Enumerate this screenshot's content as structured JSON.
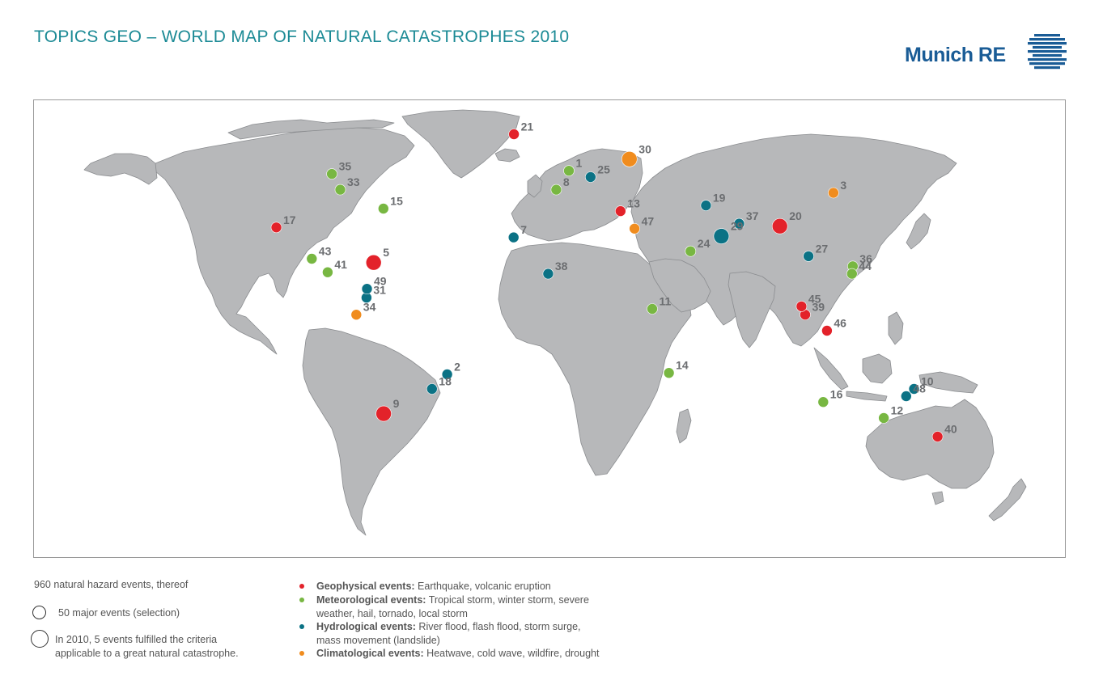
{
  "title": {
    "part1": "TOPICS GEO",
    "separator": " – ",
    "part2": "WORLD MAP OF NATURAL CATASTROPHES 2010"
  },
  "logo": {
    "text": "Munich RE",
    "mark_icon": "munich-re-stripes-icon",
    "color": "#1a5c96"
  },
  "colors": {
    "land": "#b7b8ba",
    "border": "#6b6d70",
    "geophysical": "#e3222a",
    "meteorological": "#78b742",
    "hydrological": "#0b7285",
    "climatological": "#f08c1e",
    "labels": "#6b6d70"
  },
  "legend": {
    "total": "960 natural hazard events, thereof",
    "major": "50 major events (selection)",
    "great_line1": "In 2010, 5 events fulfilled the criteria",
    "great_line2": "applicable to a great natural catastrophe.",
    "categories": [
      {
        "key": "geophysical",
        "name": "Geophysical events:",
        "desc": " Earthquake, volcanic eruption",
        "desc2": ""
      },
      {
        "key": "meteorological",
        "name": "Meteorological events:",
        "desc": " Tropical storm, winter storm, severe",
        "desc2": "weather, hail, tornado, local storm"
      },
      {
        "key": "hydrological",
        "name": "Hydrological events:",
        "desc": " River flood, flash flood, storm surge,",
        "desc2": "mass movement (landslide)"
      },
      {
        "key": "climatological",
        "name": "Climatological events:",
        "desc": " Heatwave, cold wave, wildfire, drought",
        "desc2": ""
      }
    ]
  },
  "major_events": [
    {
      "id": "1",
      "lon": 8,
      "lat": 52,
      "type": "meteorological"
    },
    {
      "id": "2",
      "lon": -43,
      "lat": -22.5,
      "type": "hydrological"
    },
    {
      "id": "3",
      "lon": 127,
      "lat": 45,
      "type": "climatological"
    },
    {
      "id": "5",
      "lon": -72.5,
      "lat": 18.5,
      "type": "geophysical",
      "great": true
    },
    {
      "id": "7",
      "lon": -16,
      "lat": 28.5,
      "type": "hydrological"
    },
    {
      "id": "8",
      "lon": 2,
      "lat": 46,
      "type": "meteorological"
    },
    {
      "id": "9",
      "lon": -72.5,
      "lat": -36,
      "type": "geophysical",
      "great": true
    },
    {
      "id": "10",
      "lon": 151,
      "lat": -27.5,
      "type": "hydrological"
    },
    {
      "id": "11",
      "lon": 40,
      "lat": 0,
      "type": "meteorological"
    },
    {
      "id": "12",
      "lon": 144,
      "lat": -37.5,
      "type": "meteorological"
    },
    {
      "id": "13",
      "lon": 30,
      "lat": 39,
      "type": "geophysical"
    },
    {
      "id": "14",
      "lon": 48,
      "lat": -22,
      "type": "meteorological"
    },
    {
      "id": "15",
      "lon": -74,
      "lat": 40,
      "type": "meteorological"
    },
    {
      "id": "16",
      "lon": 115,
      "lat": -32,
      "type": "meteorological"
    },
    {
      "id": "17",
      "lon": -117,
      "lat": 32.5,
      "type": "geophysical"
    },
    {
      "id": "18",
      "lon": -50,
      "lat": -27.5,
      "type": "hydrological"
    },
    {
      "id": "19",
      "lon": 68,
      "lat": 41,
      "type": "hydrological"
    },
    {
      "id": "20",
      "lon": 97,
      "lat": 33,
      "type": "geophysical",
      "great": true
    },
    {
      "id": "21",
      "lon": -19.6,
      "lat": 63.6,
      "type": "geophysical"
    },
    {
      "id": "24",
      "lon": 57,
      "lat": 23,
      "type": "meteorological"
    },
    {
      "id": "25",
      "lon": 18,
      "lat": 50,
      "type": "hydrological"
    },
    {
      "id": "27",
      "lon": 105,
      "lat": 21,
      "type": "hydrological"
    },
    {
      "id": "29",
      "lon": 71,
      "lat": 29,
      "type": "hydrological",
      "great": true
    },
    {
      "id": "30",
      "lon": 37.5,
      "lat": 55.7,
      "type": "climatological",
      "great": true
    },
    {
      "id": "31",
      "lon": -74,
      "lat": 4.5,
      "type": "hydrological"
    },
    {
      "id": "33",
      "lon": -96,
      "lat": 46,
      "type": "meteorological"
    },
    {
      "id": "34",
      "lon": -78,
      "lat": -2,
      "type": "climatological"
    },
    {
      "id": "35",
      "lon": -103,
      "lat": 51,
      "type": "meteorological"
    },
    {
      "id": "36",
      "lon": 122,
      "lat": 17,
      "type": "meteorological"
    },
    {
      "id": "37",
      "lon": 80,
      "lat": 34,
      "type": "hydrological"
    },
    {
      "id": "38",
      "lon": -1.5,
      "lat": 14,
      "type": "hydrological"
    },
    {
      "id": "39",
      "lon": 101,
      "lat": -2,
      "type": "geophysical"
    },
    {
      "id": "40",
      "lon": 172.5,
      "lat": -43.5,
      "type": "geophysical"
    },
    {
      "id": "41",
      "lon": -90.5,
      "lat": 14.6,
      "type": "meteorological"
    },
    {
      "id": "43",
      "lon": -98,
      "lat": 20,
      "type": "meteorological"
    },
    {
      "id": "44",
      "lon": 121,
      "lat": 14,
      "type": "meteorological"
    },
    {
      "id": "45",
      "lon": 99.5,
      "lat": 1,
      "type": "geophysical"
    },
    {
      "id": "46",
      "lon": 110,
      "lat": -7.5,
      "type": "geophysical"
    },
    {
      "id": "47",
      "lon": 35,
      "lat": 32,
      "type": "climatological"
    },
    {
      "id": "48",
      "lon": 149,
      "lat": -30,
      "type": "hydrological"
    },
    {
      "id": "49",
      "lon": -74,
      "lat": 8,
      "type": "hydrological"
    }
  ]
}
